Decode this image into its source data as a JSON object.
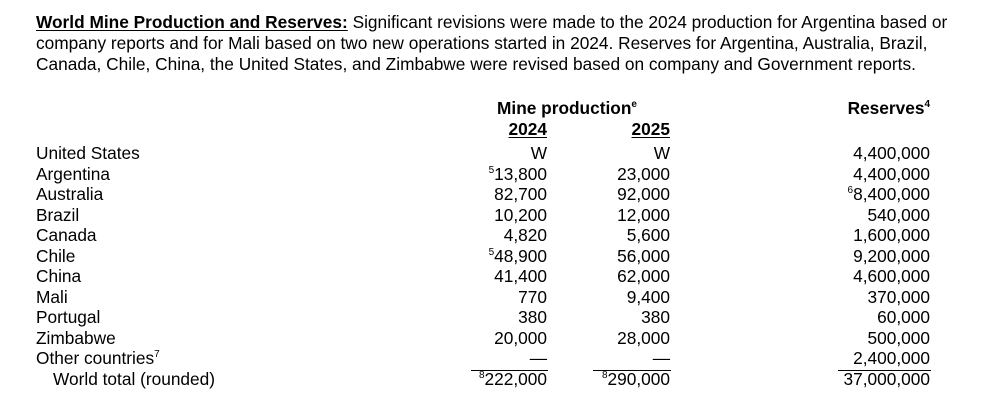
{
  "intro": {
    "heading": "World Mine Production and Reserves:",
    "line1": " Significant revisions were made to the 2024 production for Argentina based or",
    "line2": "company reports and for Mali based on two new operations started in 2024. Reserves for Argentina, Australia, Brazil,",
    "line3": "Canada, Chile, China, the United States, and Zimbabwe were revised based on company and Government reports."
  },
  "headers": {
    "mine_production": "Mine production",
    "mine_production_note": "e",
    "year_2024": "2024",
    "year_2025": "2025",
    "reserves": "Reserves",
    "reserves_note": "4"
  },
  "rows": [
    {
      "country": "United States",
      "p2024_note": "",
      "p2024": "W",
      "p2025_note": "",
      "p2025": "W",
      "reserves_note": "",
      "reserves": "4,400,000"
    },
    {
      "country": "Argentina",
      "p2024_note": "5",
      "p2024": "13,800",
      "p2025_note": "",
      "p2025": "23,000",
      "reserves_note": "",
      "reserves": "4,400,000"
    },
    {
      "country": "Australia",
      "p2024_note": "",
      "p2024": "82,700",
      "p2025_note": "",
      "p2025": "92,000",
      "reserves_note": "6",
      "reserves": "8,400,000"
    },
    {
      "country": "Brazil",
      "p2024_note": "",
      "p2024": "10,200",
      "p2025_note": "",
      "p2025": "12,000",
      "reserves_note": "",
      "reserves": "540,000"
    },
    {
      "country": "Canada",
      "p2024_note": "",
      "p2024": "4,820",
      "p2025_note": "",
      "p2025": "5,600",
      "reserves_note": "",
      "reserves": "1,600,000"
    },
    {
      "country": "Chile",
      "p2024_note": "5",
      "p2024": "48,900",
      "p2025_note": "",
      "p2025": "56,000",
      "reserves_note": "",
      "reserves": "9,200,000"
    },
    {
      "country": "China",
      "p2024_note": "",
      "p2024": "41,400",
      "p2025_note": "",
      "p2025": "62,000",
      "reserves_note": "",
      "reserves": "4,600,000"
    },
    {
      "country": "Mali",
      "p2024_note": "",
      "p2024": "770",
      "p2025_note": "",
      "p2025": "9,400",
      "reserves_note": "",
      "reserves": "370,000"
    },
    {
      "country": "Portugal",
      "p2024_note": "",
      "p2024": "380",
      "p2025_note": "",
      "p2025": "380",
      "reserves_note": "",
      "reserves": "60,000"
    },
    {
      "country": "Zimbabwe",
      "p2024_note": "",
      "p2024": "20,000",
      "p2025_note": "",
      "p2025": "28,000",
      "reserves_note": "",
      "reserves": "500,000"
    },
    {
      "country": "Other countries",
      "country_note": "7",
      "p2024_note": "",
      "p2024": "—",
      "p2025_note": "",
      "p2025": "—",
      "reserves_note": "",
      "reserves": "2,400,000"
    }
  ],
  "total": {
    "label": "World total (rounded)",
    "p2024_note": "8",
    "p2024": "222,000",
    "p2025_note": "8",
    "p2025": "290,000",
    "reserves": "37,000,000"
  }
}
